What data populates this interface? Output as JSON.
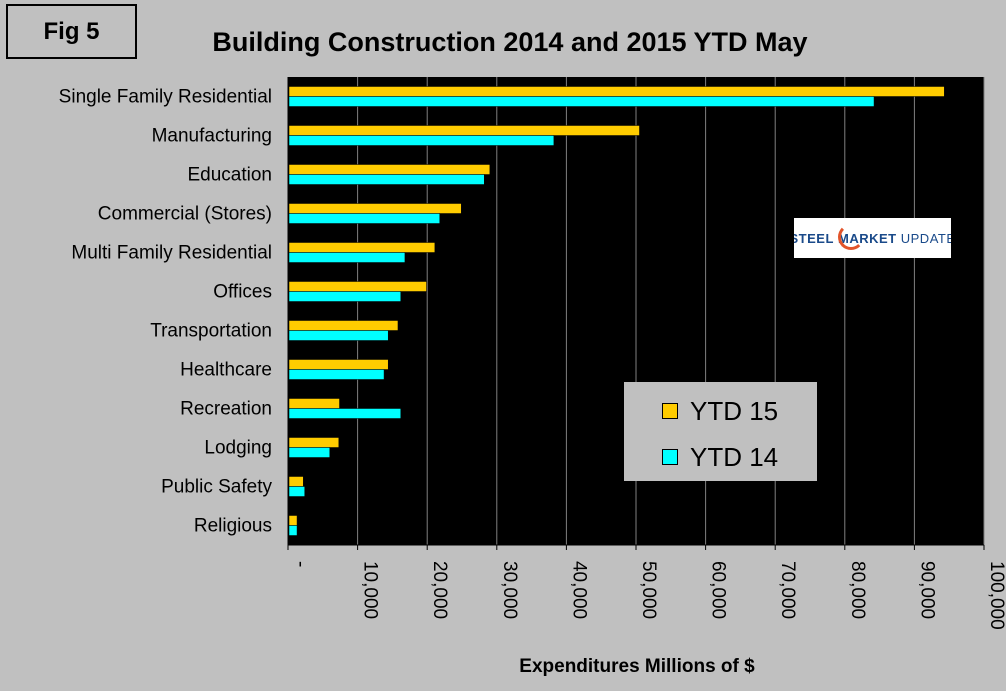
{
  "figure_label": "Fig 5",
  "logo": {
    "word1": "STEEL",
    "word2": "MARKET",
    "word3": "UPDATE"
  },
  "chart_data": {
    "type": "bar",
    "orientation": "horizontal",
    "title": "Building Construction 2014 and 2015  YTD May",
    "xlabel": "Expenditures Millions of $",
    "ylabel": "",
    "xlim": [
      0,
      100000
    ],
    "grid": true,
    "legend_position": "bottom-right",
    "categories": [
      "Single Family Residential",
      "Manufacturing",
      "Education",
      "Commercial (Stores)",
      "Multi Family Residential",
      "Offices",
      "Transportation",
      "Healthcare",
      "Recreation",
      "Lodging",
      "Public Safety",
      "Religious"
    ],
    "series": [
      {
        "name": "YTD 15",
        "color": "#ffcc00",
        "values": [
          94300,
          50500,
          29000,
          24900,
          21100,
          19900,
          15800,
          14400,
          7400,
          7300,
          2200,
          1300
        ]
      },
      {
        "name": "YTD 14",
        "color": "#00ffff",
        "values": [
          84200,
          38200,
          28200,
          21800,
          16800,
          16200,
          14400,
          13800,
          16200,
          6000,
          2400,
          1300
        ]
      }
    ],
    "xticks": [
      "-",
      "10,000",
      "20,000",
      "30,000",
      "40,000",
      "50,000",
      "60,000",
      "70,000",
      "80,000",
      "90,000",
      "100,000"
    ],
    "plot_background": "#000000",
    "grid_color": "#808080"
  }
}
